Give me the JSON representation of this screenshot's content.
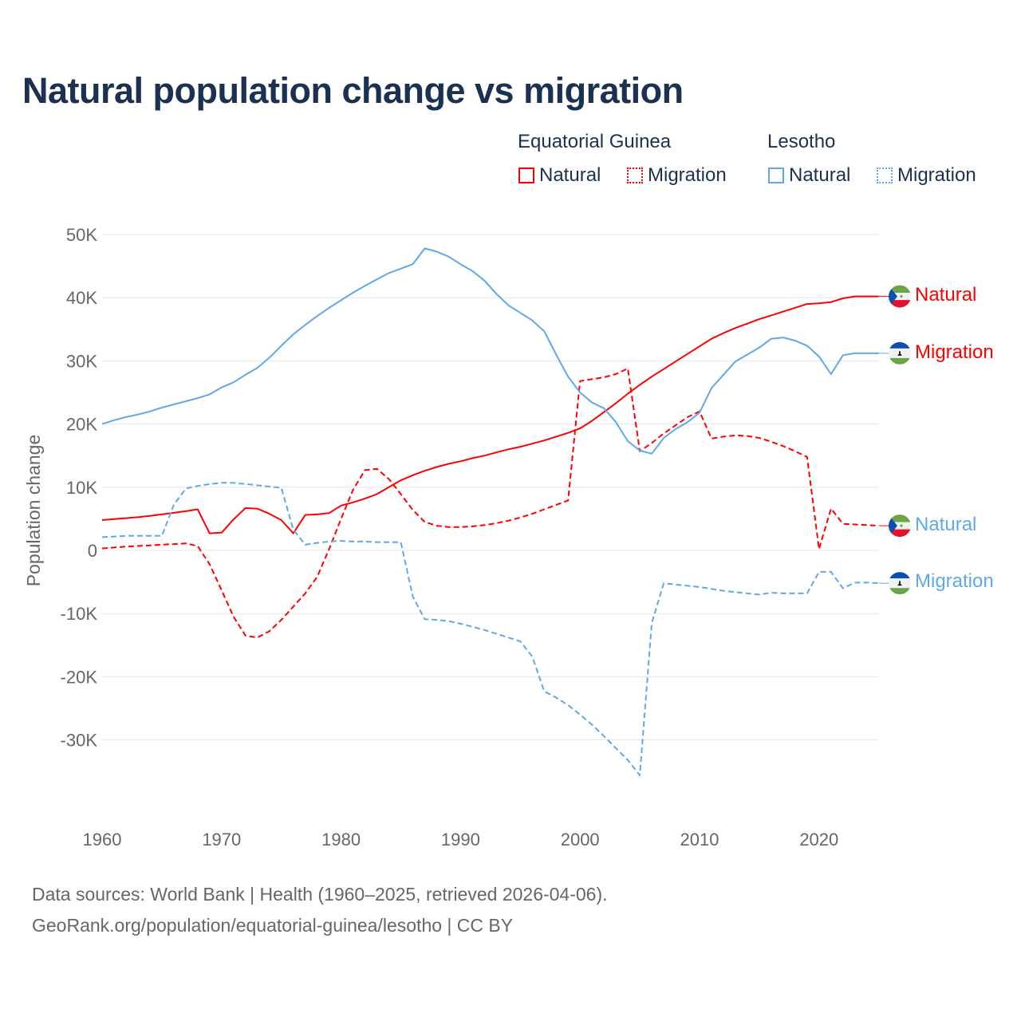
{
  "title": "Natural population change vs migration",
  "legend": {
    "groups": [
      {
        "name": "Equatorial Guinea",
        "items": [
          "Natural",
          "Migration"
        ]
      },
      {
        "name": "Lesotho",
        "items": [
          "Natural",
          "Migration"
        ]
      }
    ]
  },
  "footer": {
    "line1": "Data sources: World Bank | Health (1960–2025, retrieved 2026-04-06).",
    "line2": "GeoRank.org/population/equatorial-guinea/lesotho | CC BY"
  },
  "colors": {
    "equatorial_guinea": "#ff0000",
    "lesotho": "#5fa8ea"
  },
  "chart_data": {
    "type": "line",
    "title": "Natural population change vs migration",
    "xlabel": "",
    "ylabel": "Population change",
    "xlim": [
      1960,
      2025
    ],
    "ylim": [
      -36000,
      50000
    ],
    "x_ticks": [
      1960,
      1970,
      1980,
      1990,
      2000,
      2010,
      2020
    ],
    "y_ticks": [
      {
        "v": 50000,
        "l": "50K"
      },
      {
        "v": 40000,
        "l": "40K"
      },
      {
        "v": 30000,
        "l": "30K"
      },
      {
        "v": 20000,
        "l": "20K"
      },
      {
        "v": 10000,
        "l": "10K"
      },
      {
        "v": 0,
        "l": "0"
      },
      {
        "v": -10000,
        "l": "-10K"
      },
      {
        "v": -20000,
        "l": "-20K"
      },
      {
        "v": -30000,
        "l": "-30K"
      }
    ],
    "grid": true,
    "legend_placement": "top-right",
    "x_start": 1960,
    "series": [
      {
        "name": "Natural",
        "country": "Equatorial Guinea",
        "style": "solid",
        "end_label": "Natural",
        "flag": "equatorial-guinea",
        "values_k": [
          4.8,
          4.95,
          5.1,
          5.25,
          5.45,
          5.7,
          5.95,
          6.2,
          6.5,
          2.7,
          2.8,
          4.9,
          6.7,
          6.6,
          5.8,
          4.8,
          2.7,
          5.6,
          5.7,
          5.9,
          7.1,
          7.6,
          8.2,
          8.9,
          10.0,
          11.1,
          11.9,
          12.6,
          13.2,
          13.7,
          14.1,
          14.6,
          15.0,
          15.5,
          16.0,
          16.4,
          16.9,
          17.4,
          18.0,
          18.6,
          19.3,
          20.5,
          21.9,
          23.3,
          24.8,
          26.2,
          27.5,
          28.7,
          29.9,
          31.1,
          32.3,
          33.5,
          34.4,
          35.2,
          35.9,
          36.6,
          37.2,
          37.8,
          38.4,
          39.0,
          39.1,
          39.3,
          39.9,
          40.2,
          40.2,
          40.2
        ]
      },
      {
        "name": "Migration",
        "country": "Equatorial Guinea",
        "style": "dashed",
        "end_label": "Migration",
        "flag": "equatorial-guinea",
        "values_k": [
          0.3,
          0.45,
          0.6,
          0.7,
          0.8,
          0.9,
          1.0,
          1.1,
          0.7,
          -2.2,
          -6.3,
          -10.5,
          -13.5,
          -13.8,
          -12.8,
          -11.0,
          -8.9,
          -6.8,
          -4.2,
          0.2,
          5.0,
          9.6,
          12.7,
          12.9,
          11.3,
          8.9,
          6.4,
          4.5,
          3.9,
          3.7,
          3.7,
          3.8,
          4.0,
          4.3,
          4.7,
          5.2,
          5.8,
          6.5,
          7.2,
          7.9,
          26.8,
          27.1,
          27.4,
          27.9,
          28.8,
          15.7,
          17.0,
          18.5,
          19.8,
          21.1,
          22.0,
          17.7,
          18.0,
          18.2,
          18.1,
          17.8,
          17.2,
          16.5,
          15.7,
          14.8,
          0.2,
          6.6,
          4.2,
          4.1,
          4.0,
          3.9
        ]
      },
      {
        "name": "Natural",
        "country": "Lesotho",
        "style": "solid",
        "end_label": "Natural",
        "flag": "lesotho",
        "values_k": [
          20.0,
          20.6,
          21.1,
          21.5,
          22.0,
          22.6,
          23.1,
          23.6,
          24.1,
          24.7,
          25.8,
          26.6,
          27.8,
          28.9,
          30.5,
          32.4,
          34.2,
          35.7,
          37.1,
          38.4,
          39.6,
          40.8,
          41.9,
          42.9,
          43.9,
          44.6,
          45.3,
          47.8,
          47.3,
          46.5,
          45.3,
          44.2,
          42.7,
          40.6,
          38.8,
          37.6,
          36.4,
          34.7,
          31.0,
          27.5,
          25.0,
          23.4,
          22.5,
          20.3,
          17.3,
          15.8,
          15.3,
          17.8,
          19.2,
          20.3,
          21.8,
          25.7,
          27.8,
          29.9,
          31.0,
          32.1,
          33.5,
          33.7,
          33.2,
          32.4,
          30.7,
          27.9,
          30.9,
          31.2,
          31.2,
          31.2
        ]
      },
      {
        "name": "Migration",
        "country": "Lesotho",
        "style": "dashed",
        "end_label": "Migration",
        "flag": "lesotho",
        "values_k": [
          2.1,
          2.2,
          2.3,
          2.3,
          2.3,
          2.3,
          7.2,
          9.8,
          10.2,
          10.5,
          10.7,
          10.7,
          10.5,
          10.3,
          10.1,
          9.9,
          3.3,
          0.9,
          1.2,
          1.4,
          1.5,
          1.4,
          1.4,
          1.3,
          1.3,
          1.3,
          -7.3,
          -10.9,
          -11.0,
          -11.2,
          -11.6,
          -12.1,
          -12.6,
          -13.2,
          -13.8,
          -14.4,
          -16.8,
          -22.3,
          -23.3,
          -24.5,
          -26.0,
          -27.6,
          -29.4,
          -31.3,
          -33.2,
          -35.6,
          -11.5,
          -5.2,
          -5.4,
          -5.6,
          -5.8,
          -6.1,
          -6.4,
          -6.6,
          -6.8,
          -7.0,
          -6.7,
          -6.8,
          -6.8,
          -6.8,
          -3.4,
          -3.4,
          -6.0,
          -5.1,
          -5.1,
          -5.2
        ]
      }
    ]
  }
}
